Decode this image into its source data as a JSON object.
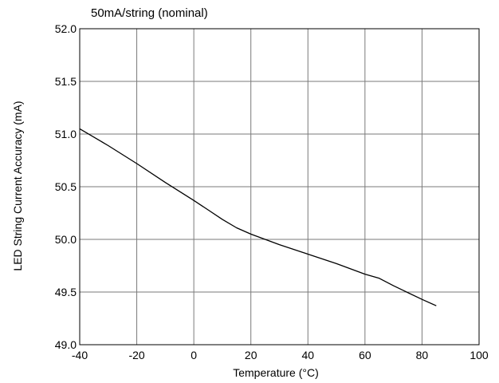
{
  "chart_data": {
    "type": "line",
    "title": "50mA/string (nominal)",
    "xlabel": "Temperature (°C)",
    "ylabel": "LED String Current Accuracy (mA)",
    "xlim": [
      -40,
      100
    ],
    "ylim": [
      49.0,
      52.0
    ],
    "x_ticks": [
      -40,
      -20,
      0,
      20,
      40,
      60,
      80,
      100
    ],
    "x_tick_labels": [
      "-40",
      "-20",
      "0",
      "20",
      "40",
      "60",
      "80",
      "100"
    ],
    "y_ticks": [
      49.0,
      49.5,
      50.0,
      50.5,
      51.0,
      51.5,
      52.0
    ],
    "y_tick_labels": [
      "49.0",
      "49.5",
      "50.0",
      "50.5",
      "51.0",
      "51.5",
      "52.0"
    ],
    "grid": true,
    "series": [
      {
        "x": [
          -40,
          -30,
          -20,
          -10,
          0,
          5,
          10,
          15,
          20,
          25,
          30,
          40,
          50,
          60,
          65,
          70,
          80,
          85
        ],
        "y": [
          51.05,
          50.89,
          50.72,
          50.54,
          50.37,
          50.28,
          50.19,
          50.11,
          50.05,
          50.0,
          49.95,
          49.86,
          49.77,
          49.67,
          49.63,
          49.56,
          49.43,
          49.37
        ]
      }
    ]
  }
}
